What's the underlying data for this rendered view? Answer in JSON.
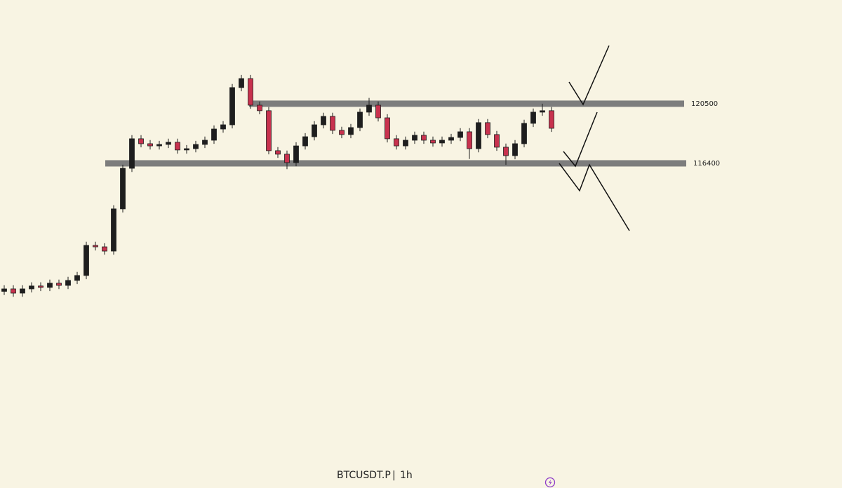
{
  "chart_data": {
    "type": "candlestick",
    "up_color": "#1e1e1e",
    "down_color": "#c8324e",
    "level_color": "#7d7d7d",
    "ylim": [
      94080,
      127630
    ],
    "open": [
      107600,
      107770,
      107480,
      107770,
      107970,
      107870,
      108160,
      108010,
      108350,
      108690,
      110760,
      110660,
      110370,
      113270,
      116060,
      118090,
      117750,
      117600,
      117700,
      117850,
      117320,
      117410,
      117700,
      117990,
      118760,
      119050,
      121610,
      122230,
      120400,
      120020,
      117270,
      117030,
      116450,
      117600,
      118230,
      119050,
      119630,
      118670,
      118380,
      118860,
      119920,
      120400,
      119530,
      118090,
      117600,
      117990,
      118330,
      117990,
      117800,
      117990,
      118180,
      118570,
      117410,
      119200,
      118380,
      117510,
      116930,
      117750,
      119150,
      119920,
      120020
    ],
    "high": [
      108020,
      108020,
      108020,
      108220,
      108220,
      108410,
      108410,
      108600,
      108940,
      111010,
      111010,
      110910,
      113520,
      116310,
      118340,
      118340,
      118000,
      117950,
      118100,
      118100,
      117660,
      117950,
      118240,
      119010,
      119300,
      121860,
      122480,
      122480,
      120650,
      120270,
      117520,
      117280,
      117850,
      118480,
      119300,
      119880,
      119880,
      118920,
      119110,
      120170,
      120900,
      120650,
      119780,
      118340,
      118240,
      118580,
      118580,
      118240,
      118240,
      118430,
      118820,
      118820,
      119450,
      119450,
      118630,
      117760,
      118000,
      119400,
      120170,
      120500,
      120270
    ],
    "low": [
      107350,
      107230,
      107230,
      107520,
      107620,
      107620,
      107760,
      107760,
      108100,
      108440,
      110410,
      110120,
      110120,
      113020,
      115810,
      117500,
      117350,
      117350,
      117450,
      117070,
      117070,
      117160,
      117450,
      117740,
      118510,
      118800,
      121360,
      120150,
      119770,
      117020,
      116780,
      116000,
      116200,
      117350,
      117980,
      118800,
      118420,
      118130,
      118130,
      118610,
      119670,
      119280,
      117840,
      117350,
      117350,
      117740,
      117740,
      117550,
      117550,
      117740,
      117930,
      116700,
      117160,
      118130,
      117260,
      116300,
      116680,
      117500,
      118900,
      119670,
      118560
    ],
    "close": [
      107770,
      107480,
      107770,
      107970,
      107870,
      108160,
      108010,
      108350,
      108690,
      110760,
      110660,
      110370,
      113270,
      116060,
      118090,
      117750,
      117600,
      117700,
      117850,
      117320,
      117410,
      117700,
      117990,
      118760,
      119050,
      121610,
      122230,
      120400,
      120020,
      117270,
      117030,
      116450,
      117600,
      118230,
      119050,
      119630,
      118670,
      118380,
      118860,
      119920,
      120400,
      119530,
      118090,
      117600,
      117990,
      118330,
      117990,
      117800,
      117990,
      118180,
      118570,
      117410,
      119200,
      118380,
      117510,
      116930,
      117750,
      119150,
      119920,
      120020,
      118810
    ],
    "levels": [
      120500,
      116400
    ],
    "symbol": "BTCUSDT.P",
    "separator": "|",
    "interval": "1h"
  }
}
